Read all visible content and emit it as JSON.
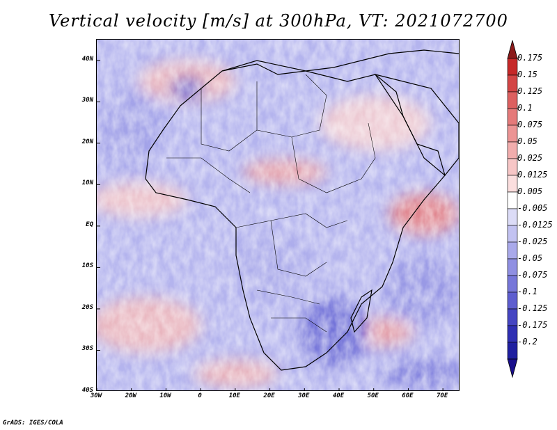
{
  "title": "Vertical velocity [m/s] at 300hPa, VT: 2021072700",
  "credit": "GrADS: IGES/COLA",
  "map": {
    "lon_range": [
      -30,
      75
    ],
    "lat_range": [
      -40,
      45
    ],
    "lat_ticks": [
      {
        "value": 40,
        "label": "40N"
      },
      {
        "value": 30,
        "label": "30N"
      },
      {
        "value": 20,
        "label": "20N"
      },
      {
        "value": 10,
        "label": "10N"
      },
      {
        "value": 0,
        "label": "EQ"
      },
      {
        "value": -10,
        "label": "10S"
      },
      {
        "value": -20,
        "label": "20S"
      },
      {
        "value": -30,
        "label": "30S"
      },
      {
        "value": -40,
        "label": "40S"
      }
    ],
    "lon_ticks": [
      {
        "value": -30,
        "label": "30W"
      },
      {
        "value": -20,
        "label": "20W"
      },
      {
        "value": -10,
        "label": "10W"
      },
      {
        "value": 0,
        "label": "0"
      },
      {
        "value": 10,
        "label": "10E"
      },
      {
        "value": 20,
        "label": "20E"
      },
      {
        "value": 30,
        "label": "30E"
      },
      {
        "value": 40,
        "label": "40E"
      },
      {
        "value": 50,
        "label": "50E"
      },
      {
        "value": 60,
        "label": "60E"
      },
      {
        "value": 70,
        "label": "70E"
      }
    ]
  },
  "colorbar": {
    "max_color": "#8b1a1a",
    "min_color": "#1a0f8c",
    "levels": [
      {
        "label": "0.175",
        "color": "#c62828"
      },
      {
        "label": "0.15",
        "color": "#d34545"
      },
      {
        "label": "0.125",
        "color": "#dd6060"
      },
      {
        "label": "0.1",
        "color": "#e57a7a"
      },
      {
        "label": "0.075",
        "color": "#ec9494"
      },
      {
        "label": "0.05",
        "color": "#f2adad"
      },
      {
        "label": "0.025",
        "color": "#f7c6c6"
      },
      {
        "label": "0.0125",
        "color": "#fbdede"
      },
      {
        "label": "0.005",
        "color": "#ffffff"
      },
      {
        "label": "-0.005",
        "color": "#dcdcf7"
      },
      {
        "label": "-0.0125",
        "color": "#c2c2f1"
      },
      {
        "label": "-0.025",
        "color": "#a9a9ea"
      },
      {
        "label": "-0.05",
        "color": "#8f8fe2"
      },
      {
        "label": "-0.075",
        "color": "#7676d9"
      },
      {
        "label": "-0.1",
        "color": "#5d5dcf"
      },
      {
        "label": "-0.125",
        "color": "#4545c2"
      },
      {
        "label": "-0.175",
        "color": "#2f2fb3"
      },
      {
        "label": "-0.2",
        "color": "#1f1fa0"
      }
    ]
  }
}
